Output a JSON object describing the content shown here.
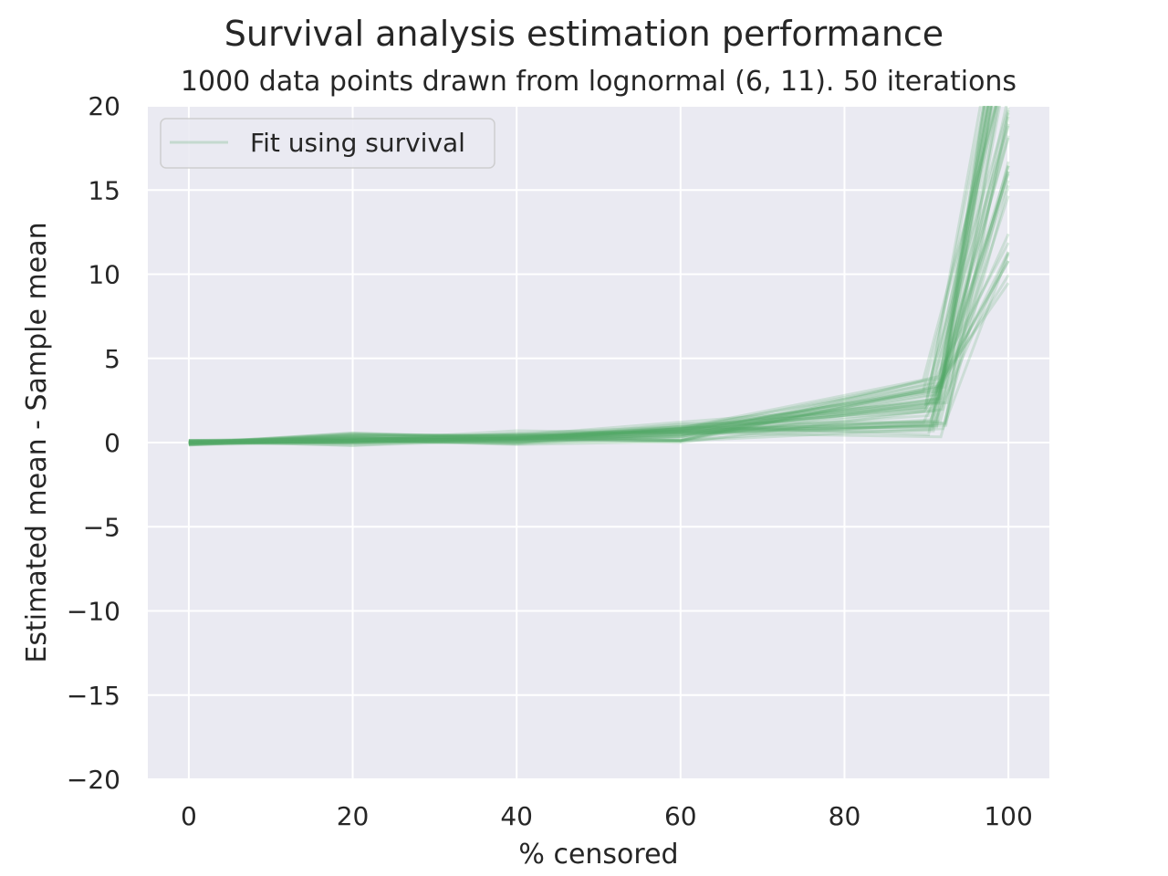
{
  "chart_data": {
    "type": "line",
    "title": "Survival analysis estimation performance",
    "subtitle": "1000 data points drawn from lognormal (6, 11). 50 iterations",
    "xlabel": "% censored",
    "ylabel": "Estimated mean - Sample mean",
    "xlim": [
      -5,
      105
    ],
    "ylim": [
      -20,
      20
    ],
    "x_ticks": [
      0,
      20,
      40,
      60,
      80,
      100
    ],
    "y_ticks": [
      20,
      15,
      10,
      5,
      0,
      -5,
      -10,
      -15,
      -20
    ],
    "x_tick_labels": [
      "0",
      "20",
      "40",
      "60",
      "80",
      "100"
    ],
    "y_tick_labels": [
      "20",
      "15",
      "10",
      "5",
      "0",
      "−5",
      "−10",
      "−15",
      "−20"
    ],
    "grid": true,
    "legend": {
      "placement": "upper-left",
      "entries": [
        "Fit using survival"
      ]
    },
    "line_color": "#55a868",
    "line_alpha": 0.2,
    "iterations": 50,
    "x": [
      0,
      20,
      40,
      60,
      91,
      100
    ],
    "series_value_ranges": {
      "0": [
        -0.4,
        0.4
      ],
      "20": [
        -0.8,
        1.1
      ],
      "40": [
        -0.7,
        1.2
      ],
      "60": [
        -0.8,
        2.0
      ],
      "91": [
        -2.3,
        6.7
      ],
      "100": [
        9.0,
        30.0
      ]
    }
  },
  "colors": {
    "background": "#eaeaf2",
    "grid": "#ffffff",
    "text": "#262626"
  }
}
